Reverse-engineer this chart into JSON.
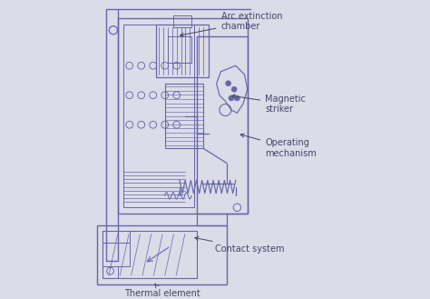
{
  "bg_color": "#dcdce8",
  "line_color": "#6666aa",
  "label_color": "#444466",
  "figsize": [
    4.74,
    3.29
  ],
  "dpi": 100,
  "labels": {
    "arc_extinction": "Arc extinction\nchamber",
    "magnetic_striker": "Magnetic\nstriker",
    "operating_mechanism": "Operating\nmechanism",
    "contact_system": "Contact system",
    "thermal_element": "Thermal element"
  }
}
